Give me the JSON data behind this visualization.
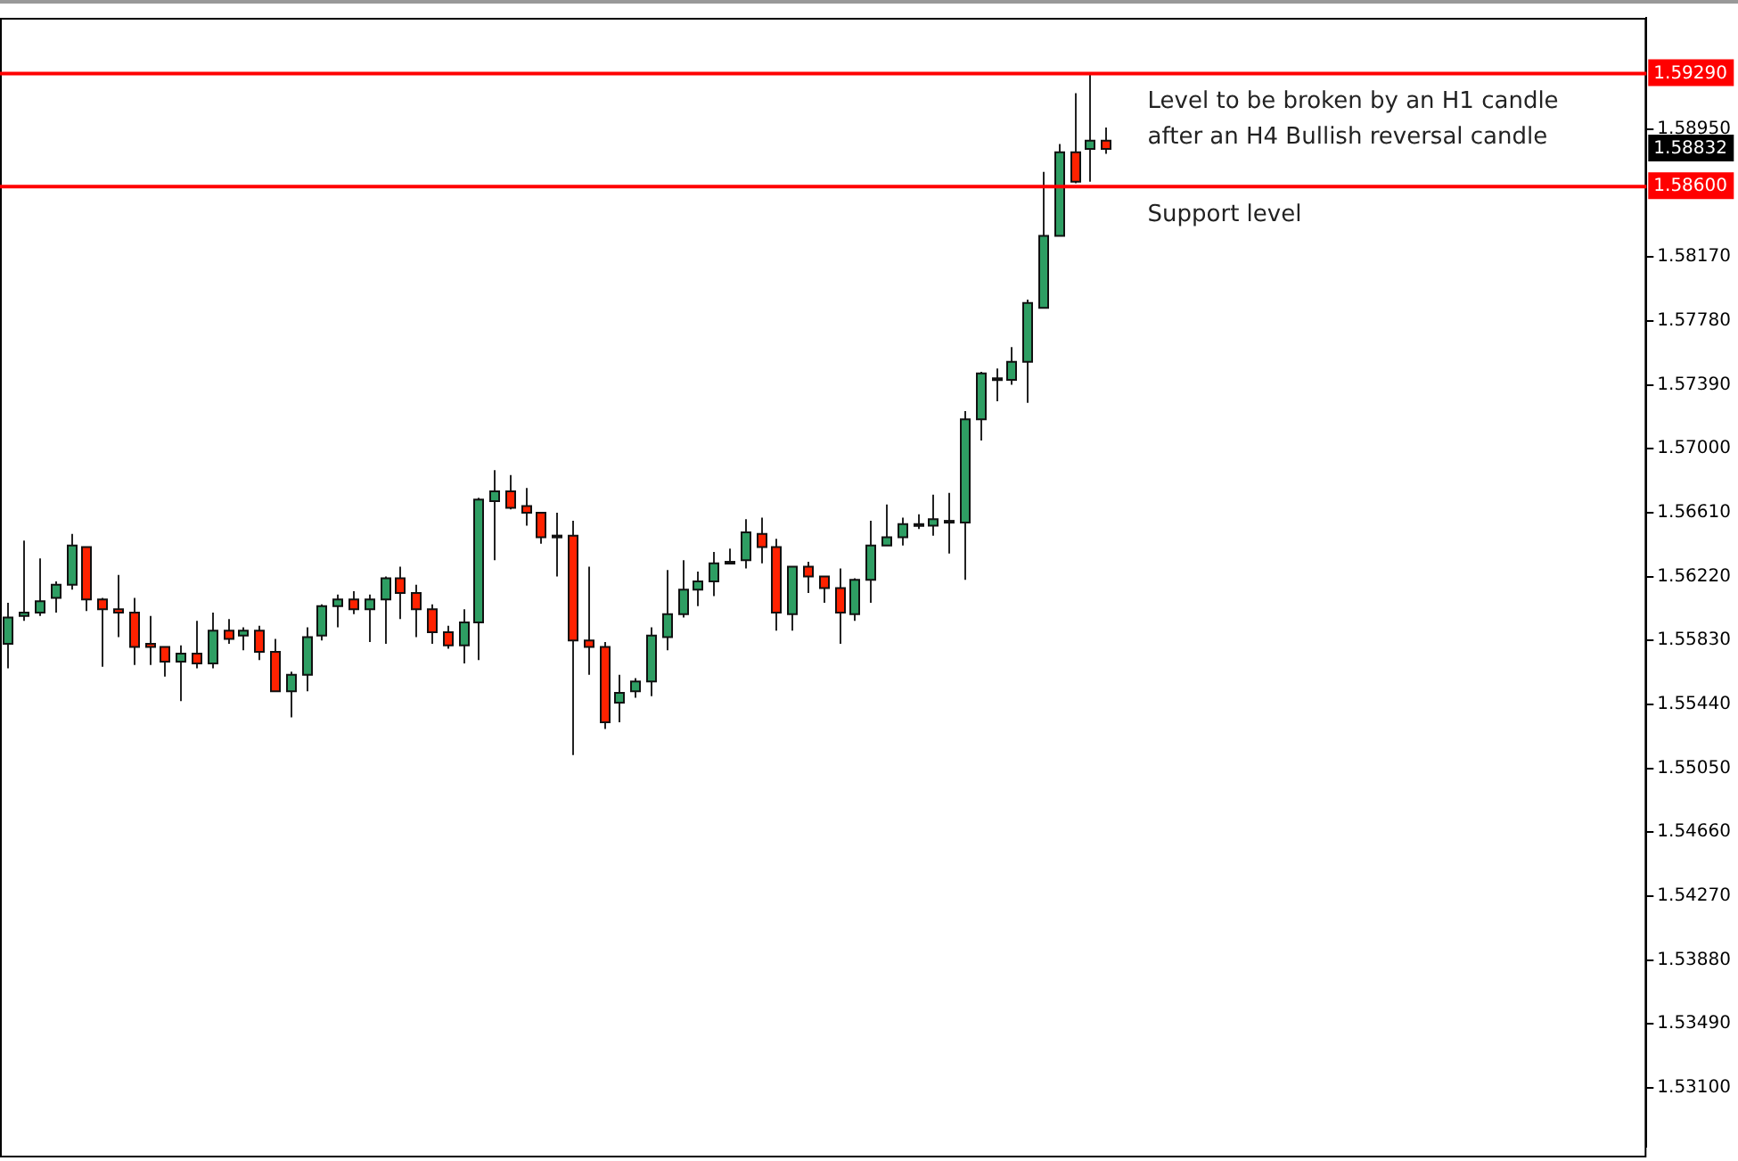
{
  "chart_data": {
    "type": "candlestick",
    "categories": [
      null,
      null,
      null,
      null,
      null,
      null,
      null,
      null,
      null,
      null,
      null,
      null,
      null,
      null,
      null,
      null,
      null,
      null,
      null,
      null,
      null,
      null,
      null,
      null,
      null,
      null,
      null,
      null,
      null,
      null,
      null,
      null,
      null,
      null,
      null,
      null,
      null,
      null,
      null,
      null,
      null,
      null,
      null,
      null,
      null,
      null,
      null,
      null,
      null,
      null,
      null,
      null,
      null,
      null,
      null,
      null,
      null,
      null,
      null,
      null,
      null,
      null,
      null,
      null,
      null,
      null,
      null,
      null,
      null,
      null,
      null,
      null,
      null,
      null,
      null,
      null,
      null,
      null,
      null,
      null,
      null,
      null,
      null,
      null,
      null,
      null,
      null,
      null,
      null,
      null,
      null,
      null,
      null,
      null,
      null,
      null,
      null,
      null,
      null,
      null,
      null,
      null,
      null,
      null,
      null
    ],
    "ohlc": [
      [
        1.5581,
        1.5606,
        1.5566,
        1.5597
      ],
      [
        1.5598,
        1.5644,
        1.5595,
        1.56
      ],
      [
        1.56,
        1.5633,
        1.5598,
        1.5607
      ],
      [
        1.5609,
        1.5619,
        1.56,
        1.5617
      ],
      [
        1.5617,
        1.5648,
        1.5614,
        1.5641
      ],
      [
        1.564,
        1.564,
        1.5601,
        1.5608
      ],
      [
        1.5608,
        1.5609,
        1.5567,
        1.5602
      ],
      [
        1.5602,
        1.5623,
        1.5585,
        1.56
      ],
      [
        1.56,
        1.5609,
        1.5568,
        1.5579
      ],
      [
        1.5581,
        1.5598,
        1.5568,
        1.5579
      ],
      [
        1.5579,
        1.5579,
        1.5561,
        1.557
      ],
      [
        1.557,
        1.558,
        1.5546,
        1.5575
      ],
      [
        1.5575,
        1.5595,
        1.5566,
        1.5569
      ],
      [
        1.5569,
        1.56,
        1.5566,
        1.5589
      ],
      [
        1.5589,
        1.5596,
        1.5581,
        1.5584
      ],
      [
        1.5586,
        1.5591,
        1.5577,
        1.5589
      ],
      [
        1.5589,
        1.5592,
        1.5571,
        1.5576
      ],
      [
        1.5576,
        1.5584,
        1.5552,
        1.5552
      ],
      [
        1.5552,
        1.5564,
        1.5536,
        1.5562
      ],
      [
        1.5562,
        1.5591,
        1.5552,
        1.5585
      ],
      [
        1.5586,
        1.5605,
        1.5583,
        1.5604
      ],
      [
        1.5604,
        1.5611,
        1.5591,
        1.5608
      ],
      [
        1.5608,
        1.5613,
        1.5599,
        1.5602
      ],
      [
        1.5602,
        1.5611,
        1.5582,
        1.5608
      ],
      [
        1.5608,
        1.5622,
        1.5581,
        1.5621
      ],
      [
        1.5621,
        1.5628,
        1.5596,
        1.5612
      ],
      [
        1.5612,
        1.5617,
        1.5585,
        1.5602
      ],
      [
        1.5602,
        1.5605,
        1.5581,
        1.5588
      ],
      [
        1.5588,
        1.5592,
        1.5578,
        1.558
      ],
      [
        1.558,
        1.5602,
        1.5569,
        1.5594
      ],
      [
        1.5594,
        1.567,
        1.5571,
        1.5669
      ],
      [
        1.5668,
        1.5687,
        1.5632,
        1.5674
      ],
      [
        1.5674,
        1.5684,
        1.5663,
        1.5664
      ],
      [
        1.5665,
        1.5676,
        1.5653,
        1.5661
      ],
      [
        1.5661,
        1.5661,
        1.5642,
        1.5646
      ],
      [
        1.5647,
        1.5661,
        1.5622,
        1.5646
      ],
      [
        1.5647,
        1.5656,
        1.5513,
        1.5583
      ],
      [
        1.5583,
        1.5628,
        1.5562,
        1.5579
      ],
      [
        1.5579,
        1.5582,
        1.5529,
        1.5533
      ],
      [
        1.5545,
        1.5562,
        1.5533,
        1.5551
      ],
      [
        1.5552,
        1.556,
        1.5548,
        1.5558
      ],
      [
        1.5558,
        1.5591,
        1.5549,
        1.5586
      ],
      [
        1.5585,
        1.5626,
        1.5577,
        1.5599
      ],
      [
        1.5599,
        1.5632,
        1.5597,
        1.5614
      ],
      [
        1.5614,
        1.5625,
        1.5604,
        1.5619
      ],
      [
        1.5619,
        1.5637,
        1.561,
        1.563
      ],
      [
        1.563,
        1.5639,
        1.563,
        1.5631
      ],
      [
        1.5632,
        1.5657,
        1.5627,
        1.5649
      ],
      [
        1.5648,
        1.5658,
        1.563,
        1.564
      ],
      [
        1.564,
        1.5645,
        1.5589,
        1.56
      ],
      [
        1.5599,
        1.5628,
        1.5589,
        1.5628
      ],
      [
        1.5628,
        1.5631,
        1.5612,
        1.5622
      ],
      [
        1.5622,
        1.5622,
        1.5606,
        1.5615
      ],
      [
        1.5615,
        1.5627,
        1.5581,
        1.56
      ],
      [
        1.5599,
        1.5621,
        1.5595,
        1.562
      ],
      [
        1.562,
        1.5656,
        1.5606,
        1.5641
      ],
      [
        1.5641,
        1.5666,
        1.5641,
        1.5646
      ],
      [
        1.5646,
        1.5658,
        1.5641,
        1.5654
      ],
      [
        1.5653,
        1.566,
        1.5651,
        1.5654
      ],
      [
        1.5653,
        1.5672,
        1.5647,
        1.5657
      ],
      [
        1.5655,
        1.5673,
        1.5636,
        1.5656
      ],
      [
        1.5655,
        1.5723,
        1.562,
        1.5718
      ],
      [
        1.5718,
        1.5747,
        1.5705,
        1.5746
      ],
      [
        1.5742,
        1.5749,
        1.5729,
        1.5743
      ],
      [
        1.5742,
        1.5762,
        1.5739,
        1.5753
      ],
      [
        1.5753,
        1.5791,
        1.5728,
        1.5789
      ],
      [
        1.5786,
        1.5869,
        1.5786,
        1.583
      ],
      [
        1.583,
        1.5886,
        1.583,
        1.5881
      ],
      [
        1.5881,
        1.5917,
        1.5862,
        1.5863
      ],
      [
        1.5883,
        1.5929,
        1.5863,
        1.5888
      ],
      [
        1.5888,
        1.5896,
        1.588,
        1.5883
      ],
      null,
      null,
      null,
      null,
      null,
      null,
      null,
      null,
      null,
      null,
      null,
      null,
      null,
      null,
      null,
      null,
      null,
      null,
      null,
      null,
      null,
      null,
      null,
      null,
      null,
      null,
      null,
      null,
      null,
      null,
      null,
      null,
      null,
      null
    ],
    "ylim": [
      1.5274,
      1.5963
    ],
    "yticks": [
      {
        "value": 1.531,
        "label": "1.53100"
      },
      {
        "value": 1.5349,
        "label": "1.53490"
      },
      {
        "value": 1.5388,
        "label": "1.53880"
      },
      {
        "value": 1.5427,
        "label": "1.54270"
      },
      {
        "value": 1.5466,
        "label": "1.54660"
      },
      {
        "value": 1.5505,
        "label": "1.55050"
      },
      {
        "value": 1.5544,
        "label": "1.55440"
      },
      {
        "value": 1.5583,
        "label": "1.55830"
      },
      {
        "value": 1.5622,
        "label": "1.56220"
      },
      {
        "value": 1.5661,
        "label": "1.56610"
      },
      {
        "value": 1.57,
        "label": "1.57000"
      },
      {
        "value": 1.5739,
        "label": "1.57390"
      },
      {
        "value": 1.5778,
        "label": "1.57780"
      },
      {
        "value": 1.5817,
        "label": "1.58170"
      },
      {
        "value": 1.5895,
        "label": "1.58950"
      }
    ],
    "tick_labels": "y",
    "ref_lines": [
      {
        "axis": "y",
        "value": 1.5929,
        "label": "1.59290",
        "color": "#ff0000"
      },
      {
        "axis": "y",
        "value": 1.586,
        "label": "1.58600",
        "color": "#ff0000"
      }
    ],
    "annotations": [
      {
        "text": "Level to be broken by an H1 candle after an H4 Bullish reversal candle",
        "y": 1.5929
      },
      {
        "text": "Support level",
        "y": 1.586
      },
      "1.58832"
    ]
  }
}
